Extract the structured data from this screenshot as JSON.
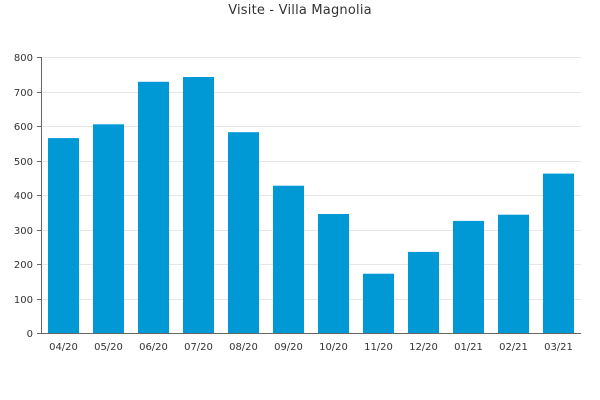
{
  "chart_data": {
    "type": "bar",
    "title": "Visite - Villa Magnolia",
    "xlabel": "",
    "ylabel": "",
    "categories": [
      "04/20",
      "05/20",
      "06/20",
      "07/20",
      "08/20",
      "09/20",
      "10/20",
      "11/20",
      "12/20",
      "01/21",
      "02/21",
      "03/21"
    ],
    "values": [
      565,
      605,
      728,
      742,
      582,
      427,
      345,
      172,
      235,
      325,
      343,
      462
    ],
    "ylim": [
      0,
      800
    ],
    "yticks": [
      0,
      100,
      200,
      300,
      400,
      500,
      600,
      700,
      800
    ],
    "grid": true,
    "legend": "none",
    "colors": {
      "bar": "#0199d5",
      "grid": "#e6e6e6",
      "axis": "#666666",
      "text": "#333333"
    }
  }
}
